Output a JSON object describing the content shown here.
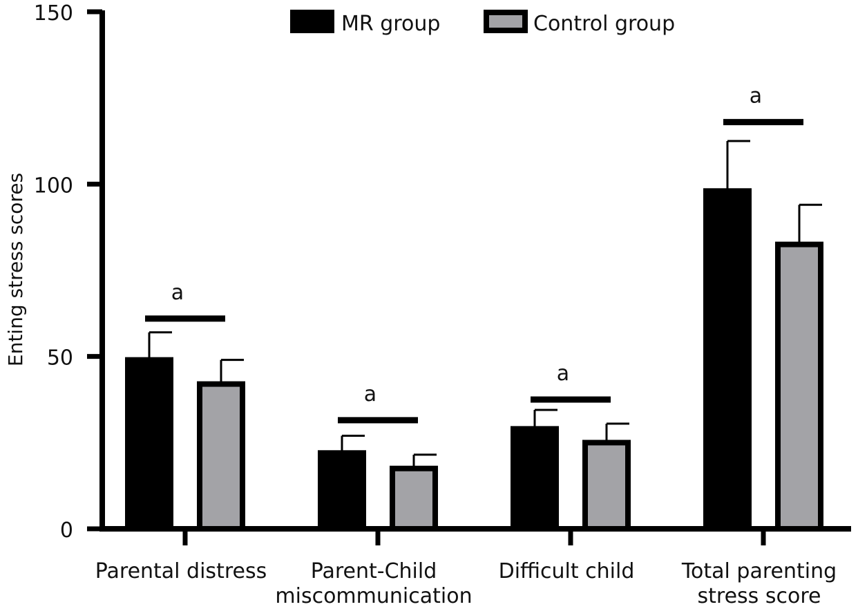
{
  "chart_data": {
    "type": "bar",
    "title": "",
    "xlabel": "",
    "ylabel": "Enting stress scores",
    "ylim": [
      0,
      150
    ],
    "yticks": [
      0,
      50,
      100,
      150
    ],
    "categories": [
      [
        "Parental distress"
      ],
      [
        "Parent-Child",
        "miscommunication"
      ],
      [
        "Difficult child"
      ],
      [
        "Total parenting",
        "stress score"
      ]
    ],
    "series": [
      {
        "name": "MR group",
        "color": "#000000",
        "values": [
          49,
          22,
          29,
          98
        ],
        "errors": [
          8,
          5,
          5.5,
          14.5
        ]
      },
      {
        "name": "Control group",
        "color": "#a3a3a7",
        "values": [
          42,
          17.5,
          25,
          82.5
        ],
        "errors": [
          7,
          4,
          5.5,
          11.5
        ]
      }
    ],
    "significance": [
      {
        "category": 0,
        "label": "a",
        "bar_value": 61
      },
      {
        "category": 1,
        "label": "a",
        "bar_value": 31.5
      },
      {
        "category": 2,
        "label": "a",
        "bar_value": 37.5
      },
      {
        "category": 3,
        "label": "a",
        "bar_value": 118
      }
    ],
    "legend": "top",
    "grid": false
  }
}
